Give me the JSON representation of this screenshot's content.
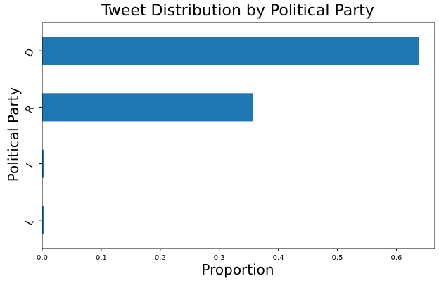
{
  "chart_data": {
    "type": "bar",
    "orientation": "horizontal",
    "title": "Tweet Distribution by Political Party",
    "xlabel": "Proportion",
    "ylabel": "Political Party",
    "categories": [
      "D",
      "R",
      "I",
      "L"
    ],
    "values": [
      0.638,
      0.357,
      0.003,
      0.003
    ],
    "xlim": [
      0,
      0.665
    ],
    "xticks": [
      0.0,
      0.1,
      0.2,
      0.3,
      0.4,
      0.5,
      0.6
    ],
    "xtick_labels": [
      "0.0",
      "0.1",
      "0.2",
      "0.3",
      "0.4",
      "0.5",
      "0.6"
    ],
    "bar_color": "#1f77b4",
    "grid": false
  }
}
